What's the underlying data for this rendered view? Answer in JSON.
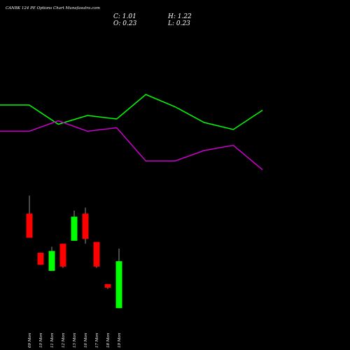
{
  "header": {
    "title": "CANBK 124 PE Options Chart Munafasutra.com",
    "close_label": "C: 1.01",
    "open_label": "O: 0.23",
    "high_label": "H: 1.22",
    "low_label": "L: 0.23"
  },
  "colors": {
    "background": "#000000",
    "up": "#00ff00",
    "down": "#ff0000",
    "line_green": "#00ff00",
    "line_magenta": "#cc00cc",
    "text": "#ffffff"
  },
  "chart_data": [
    {
      "type": "line",
      "title": "",
      "xlabel": "",
      "ylabel": "",
      "series": [
        {
          "values": [
            0.56,
            0.56,
            0.45,
            0.5,
            0.48,
            0.62,
            0.55,
            0.46,
            0.42,
            0.53
          ]
        },
        {
          "values": [
            0.41,
            0.41,
            0.47,
            0.41,
            0.43,
            0.24,
            0.24,
            0.3,
            0.33,
            0.19
          ]
        }
      ],
      "ylim": [
        0,
        1
      ]
    },
    {
      "type": "candlestick",
      "title": "",
      "categories": [
        "09 Mon",
        "10 Mon",
        "11 Mon",
        "12 Mon",
        "13 Mon",
        "16 Mon",
        "17 Mon",
        "18 Mon",
        "19 Mon"
      ],
      "ohlc": [
        {
          "open": 1.8,
          "high": 2.1,
          "low": 1.4,
          "close": 1.4
        },
        {
          "open": 1.15,
          "high": 1.15,
          "low": 0.95,
          "close": 0.95
        },
        {
          "open": 0.85,
          "high": 1.25,
          "low": 0.85,
          "close": 1.18
        },
        {
          "open": 1.3,
          "high": 1.3,
          "low": 0.9,
          "close": 0.92
        },
        {
          "open": 1.35,
          "high": 1.85,
          "low": 1.35,
          "close": 1.75
        },
        {
          "open": 1.8,
          "high": 1.9,
          "low": 1.3,
          "close": 1.38
        },
        {
          "open": 1.33,
          "high": 1.33,
          "low": 0.9,
          "close": 0.92
        },
        {
          "open": 0.63,
          "high": 0.63,
          "low": 0.55,
          "close": 0.57
        },
        {
          "open": 0.23,
          "high": 1.22,
          "low": 0.23,
          "close": 1.01
        }
      ],
      "ylim": [
        0,
        2.5
      ]
    }
  ]
}
